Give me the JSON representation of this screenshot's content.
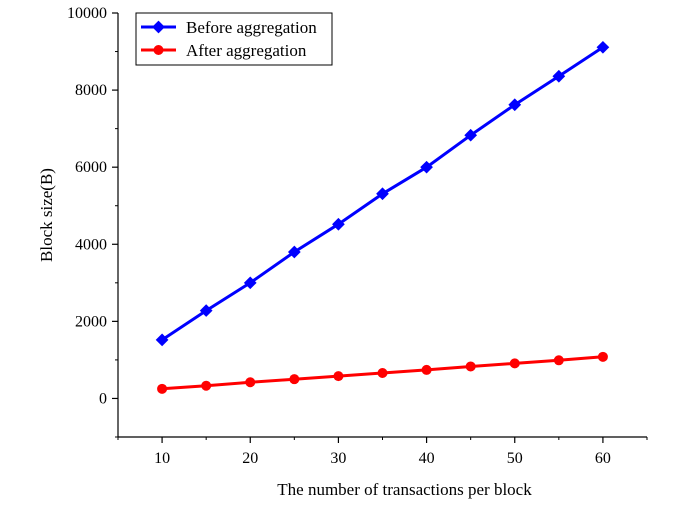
{
  "chart_data": {
    "type": "line",
    "title": "",
    "xlabel": "The number of transactions per block",
    "ylabel": "Block size(B)",
    "x": [
      10,
      15,
      20,
      25,
      30,
      35,
      40,
      45,
      50,
      55,
      60
    ],
    "xlim": [
      5,
      65
    ],
    "ylim": [
      -1000,
      10000
    ],
    "xticks": [
      10,
      20,
      30,
      40,
      50,
      60
    ],
    "yticks": [
      0,
      2000,
      4000,
      6000,
      8000,
      10000
    ],
    "grid": false,
    "legend_position": "top-left",
    "series": [
      {
        "name": "Before aggregation",
        "color": "#0000ff",
        "marker": "diamond",
        "values": [
          1520,
          2280,
          3000,
          3800,
          4520,
          5310,
          6000,
          6830,
          7620,
          8360,
          9110
        ]
      },
      {
        "name": "After aggregation",
        "color": "#ff0000",
        "marker": "circle",
        "values": [
          250,
          330,
          420,
          500,
          580,
          660,
          740,
          830,
          910,
          990,
          1080
        ]
      }
    ]
  }
}
